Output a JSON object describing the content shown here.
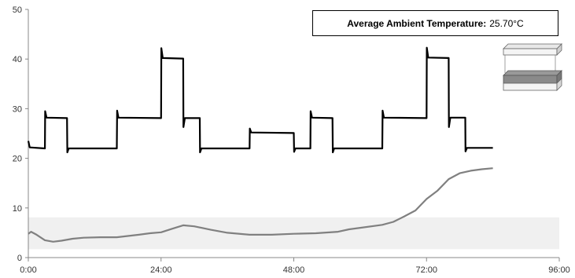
{
  "chart_data": {
    "type": "line",
    "title": "",
    "xlabel": "",
    "ylabel": "",
    "xlim": [
      0,
      96
    ],
    "ylim": [
      0,
      50
    ],
    "x_ticks": [
      "0:00",
      "24:00",
      "48:00",
      "72:00",
      "96:00"
    ],
    "y_ticks": [
      "0",
      "10",
      "20",
      "30",
      "40",
      "50"
    ],
    "grid": false,
    "band": {
      "y": [
        1.7,
        8.1
      ],
      "color": "#f0f0f0"
    },
    "legend_text": {
      "label": "Average Ambient Temperature:",
      "value": "25.70°C"
    },
    "series": [
      {
        "color": "#000000",
        "points": [
          [
            0,
            23.5
          ],
          [
            0.25,
            22.2
          ],
          [
            3,
            22
          ],
          [
            3.05,
            29.5
          ],
          [
            3.3,
            28.2
          ],
          [
            7,
            28.1
          ],
          [
            7.05,
            21.2
          ],
          [
            7.3,
            22
          ],
          [
            16,
            22
          ],
          [
            16.05,
            29.6
          ],
          [
            16.3,
            28.2
          ],
          [
            24,
            28.1
          ],
          [
            24.05,
            42.2
          ],
          [
            24.3,
            40.2
          ],
          [
            28,
            40.1
          ],
          [
            28.05,
            26.3
          ],
          [
            28.3,
            28.1
          ],
          [
            31,
            28.1
          ],
          [
            31.05,
            21.2
          ],
          [
            31.3,
            22
          ],
          [
            40,
            22
          ],
          [
            40.05,
            26
          ],
          [
            40.3,
            25.2
          ],
          [
            48,
            25.1
          ],
          [
            48.05,
            21.3
          ],
          [
            48.3,
            22
          ],
          [
            51,
            22
          ],
          [
            51.05,
            29.5
          ],
          [
            51.3,
            28.2
          ],
          [
            55,
            28.1
          ],
          [
            55.05,
            21.2
          ],
          [
            55.3,
            22
          ],
          [
            64,
            22
          ],
          [
            64.05,
            29.6
          ],
          [
            64.3,
            28.2
          ],
          [
            72,
            28.1
          ],
          [
            72.05,
            42.3
          ],
          [
            72.3,
            40.3
          ],
          [
            76,
            40.2
          ],
          [
            76.05,
            26.3
          ],
          [
            76.3,
            28.2
          ],
          [
            79,
            28.2
          ],
          [
            79.05,
            21.4
          ],
          [
            79.3,
            22.1
          ],
          [
            84,
            22.1
          ]
        ]
      },
      {
        "color": "#808080",
        "points": [
          [
            0,
            4.8
          ],
          [
            0.5,
            5.2
          ],
          [
            1.5,
            4.6
          ],
          [
            3,
            3.5
          ],
          [
            4.5,
            3.2
          ],
          [
            6,
            3.4
          ],
          [
            8,
            3.8
          ],
          [
            10,
            4
          ],
          [
            13,
            4.1
          ],
          [
            16,
            4.1
          ],
          [
            20,
            4.6
          ],
          [
            22,
            4.9
          ],
          [
            24,
            5.1
          ],
          [
            26,
            5.8
          ],
          [
            28,
            6.5
          ],
          [
            30,
            6.3
          ],
          [
            33,
            5.6
          ],
          [
            36,
            5
          ],
          [
            40,
            4.6
          ],
          [
            44,
            4.6
          ],
          [
            48,
            4.8
          ],
          [
            52,
            4.9
          ],
          [
            56,
            5.2
          ],
          [
            58,
            5.7
          ],
          [
            60,
            6
          ],
          [
            64,
            6.6
          ],
          [
            66,
            7.2
          ],
          [
            68,
            8.3
          ],
          [
            70,
            9.5
          ],
          [
            72,
            11.8
          ],
          [
            74,
            13.5
          ],
          [
            76,
            15.8
          ],
          [
            78,
            17
          ],
          [
            80,
            17.5
          ],
          [
            82,
            17.8
          ],
          [
            84,
            18
          ]
        ]
      }
    ]
  }
}
